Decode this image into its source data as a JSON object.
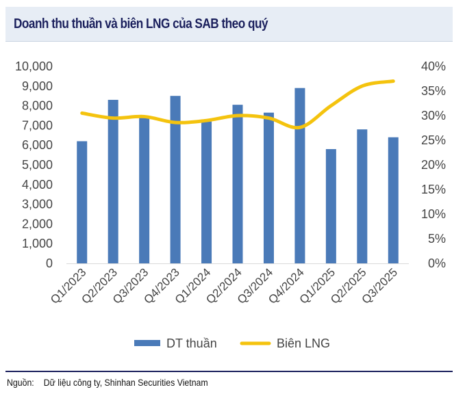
{
  "title": "Doanh thu thuần và biên LNG của SAB theo quý",
  "footer": {
    "label": "Nguồn:",
    "text": "Dữ liệu công ty, Shinhan Securities Vietnam"
  },
  "chart_data": {
    "type": "bar",
    "title": "Doanh thu thuần và biên LNG của SAB theo quý",
    "categories": [
      "Q1/2023",
      "Q2/2023",
      "Q3/2023",
      "Q4/2023",
      "Q1/2024",
      "Q2/2024",
      "Q3/2024",
      "Q4/2024",
      "Q1/2025",
      "Q2/2025",
      "Q3/2025"
    ],
    "series": [
      {
        "name": "DT thuần",
        "kind": "bar",
        "axis": "left",
        "color": "#4a7ab8",
        "values": [
          6200,
          8300,
          7400,
          8500,
          7200,
          8050,
          7650,
          8900,
          5800,
          6800,
          6400
        ]
      },
      {
        "name": "Biên LNG",
        "kind": "line",
        "axis": "right",
        "color": "#f4c30e",
        "values": [
          30.5,
          29.5,
          29.8,
          28.6,
          29.0,
          30.0,
          29.5,
          27.6,
          32.0,
          36.0,
          37.0
        ]
      }
    ],
    "ylim_left": [
      0,
      10000
    ],
    "yticks_left": [
      "0",
      "1,000",
      "2,000",
      "3,000",
      "4,000",
      "5,000",
      "6,000",
      "7,000",
      "8,000",
      "9,000",
      "10,000"
    ],
    "ylim_right": [
      0,
      40
    ],
    "yticks_right": [
      "0%",
      "5%",
      "10%",
      "15%",
      "20%",
      "25%",
      "30%",
      "35%",
      "40%"
    ],
    "legend_position": "bottom",
    "grid": false
  }
}
